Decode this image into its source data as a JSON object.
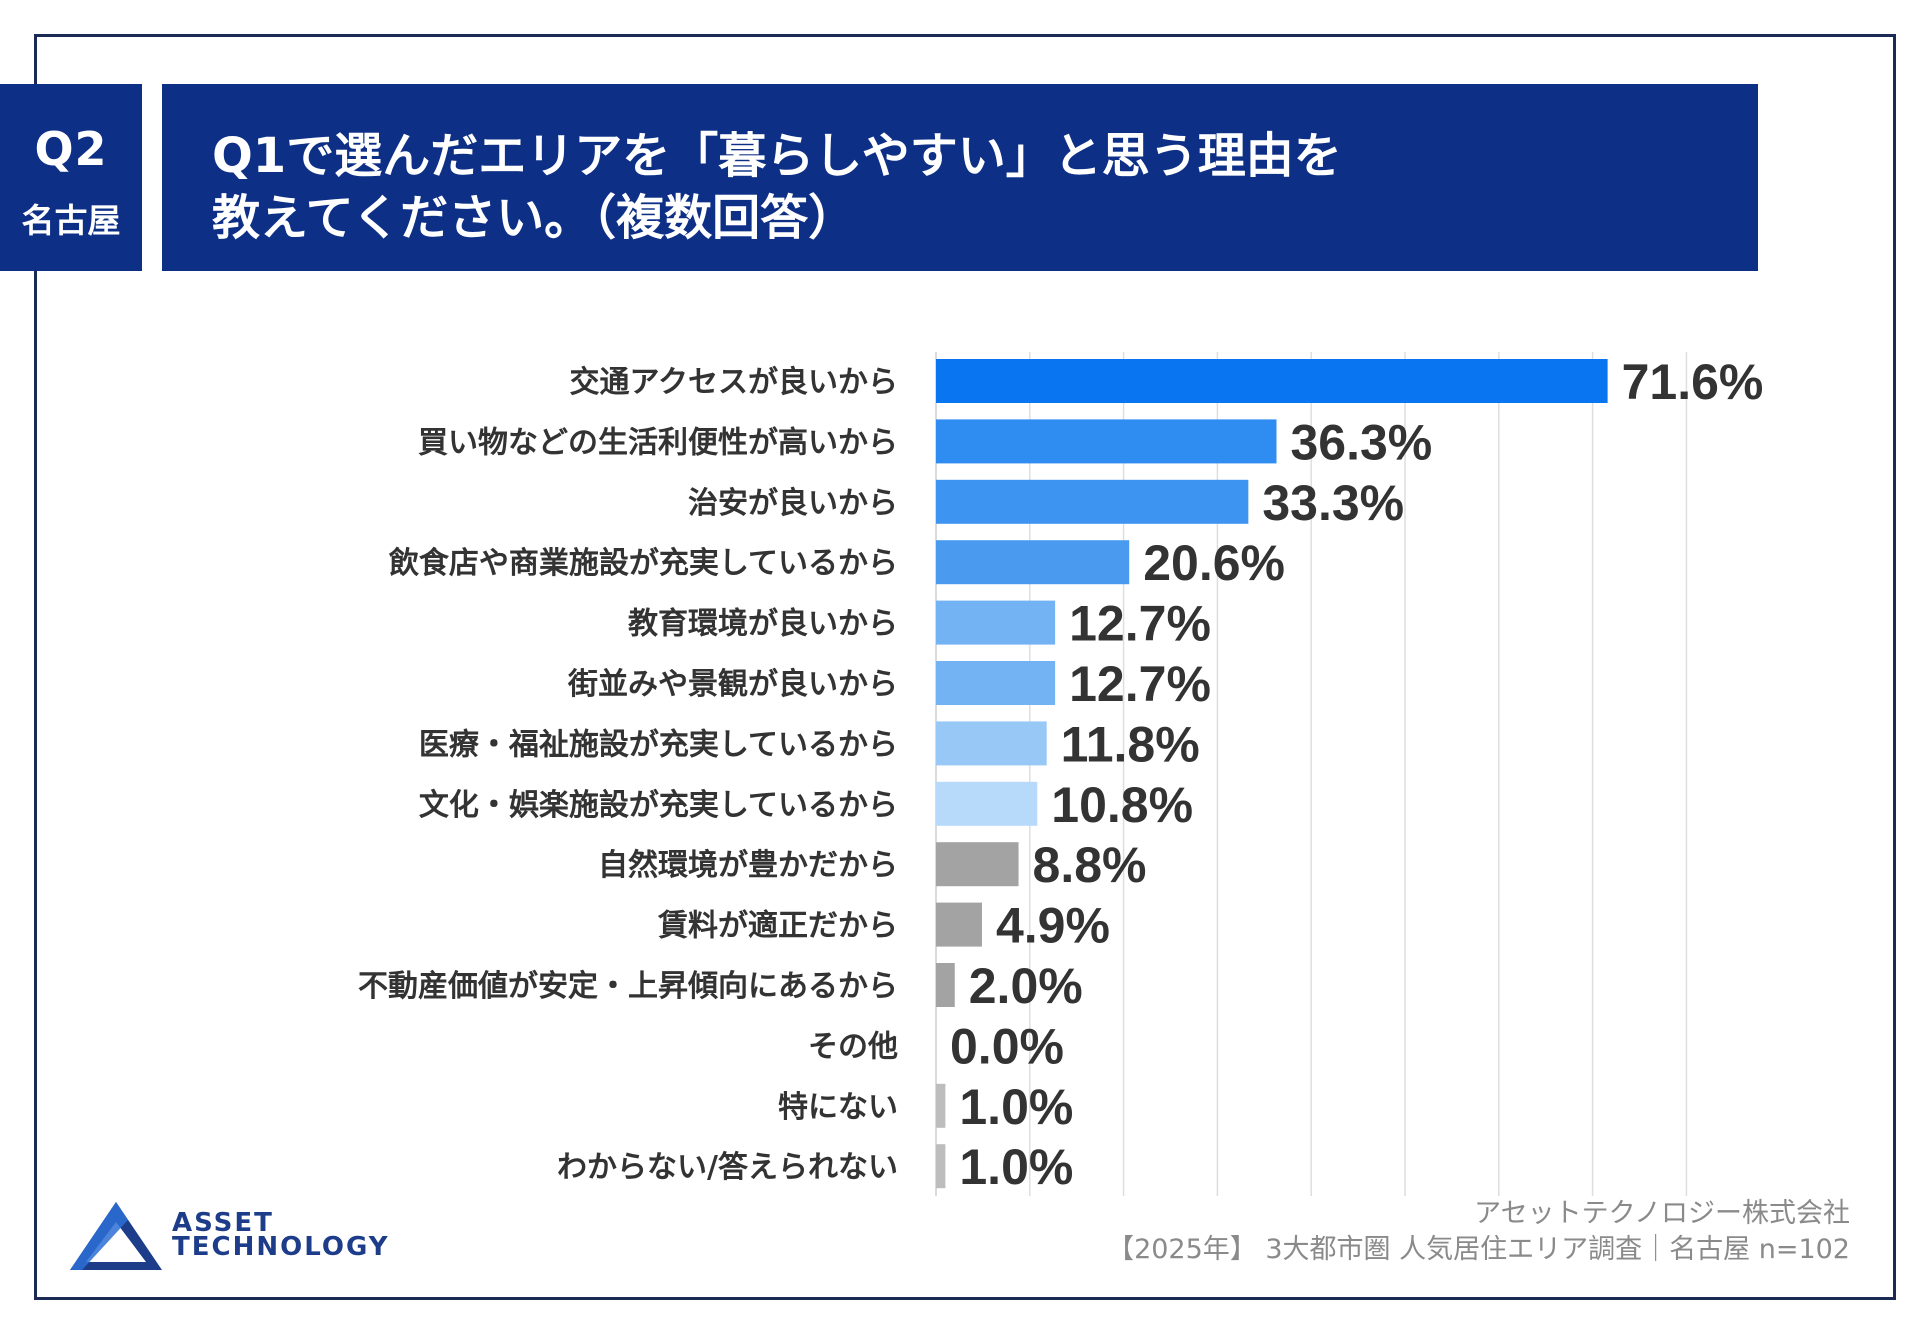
{
  "header": {
    "question_number": "Q2",
    "area": "名古屋",
    "title_line1": "Q1で選んだエリアを「暮らしやすい」と思う理由を",
    "title_line2": "教えてください。（複数回答）"
  },
  "chart_data": {
    "type": "bar",
    "orientation": "horizontal",
    "categories": [
      "交通アクセスが良いから",
      "買い物などの生活利便性が高いから",
      "治安が良いから",
      "飲食店や商業施設が充実しているから",
      "教育環境が良いから",
      "街並みや景観が良いから",
      "医療・福祉施設が充実しているから",
      "文化・娯楽施設が充実しているから",
      "自然環境が豊かだから",
      "賃料が適正だから",
      "不動産価値が安定・上昇傾向にあるから",
      "その他",
      "特にない",
      "わからない/答えられない"
    ],
    "values": [
      71.6,
      36.3,
      33.3,
      20.6,
      12.7,
      12.7,
      11.8,
      10.8,
      8.8,
      4.9,
      2.0,
      0.0,
      1.0,
      1.0
    ],
    "value_labels": [
      "71.6%",
      "36.3%",
      "33.3%",
      "20.6%",
      "12.7%",
      "12.7%",
      "11.8%",
      "10.8%",
      "8.8%",
      "4.9%",
      "2.0%",
      "0.0%",
      "1.0%",
      "1.0%"
    ],
    "bar_colors": [
      "#0a75f0",
      "#2f8cf0",
      "#3d94f1",
      "#4a9bf0",
      "#73b2f3",
      "#73b2f3",
      "#98c8f6",
      "#b7dafa",
      "#a3a3a3",
      "#a3a3a3",
      "#a3a3a3",
      "#a3a3a3",
      "#bdbdbd",
      "#bdbdbd"
    ],
    "xlim": [
      0,
      80
    ],
    "grid": true,
    "title": "",
    "xlabel": "",
    "ylabel": ""
  },
  "logo": {
    "line1": "ASSET",
    "line2": "TECHNOLOGY"
  },
  "credit": {
    "company": "アセットテクノロジー株式会社",
    "source": "【2025年】 3大都市圏 人気居住エリア調査｜名古屋 n=102"
  }
}
